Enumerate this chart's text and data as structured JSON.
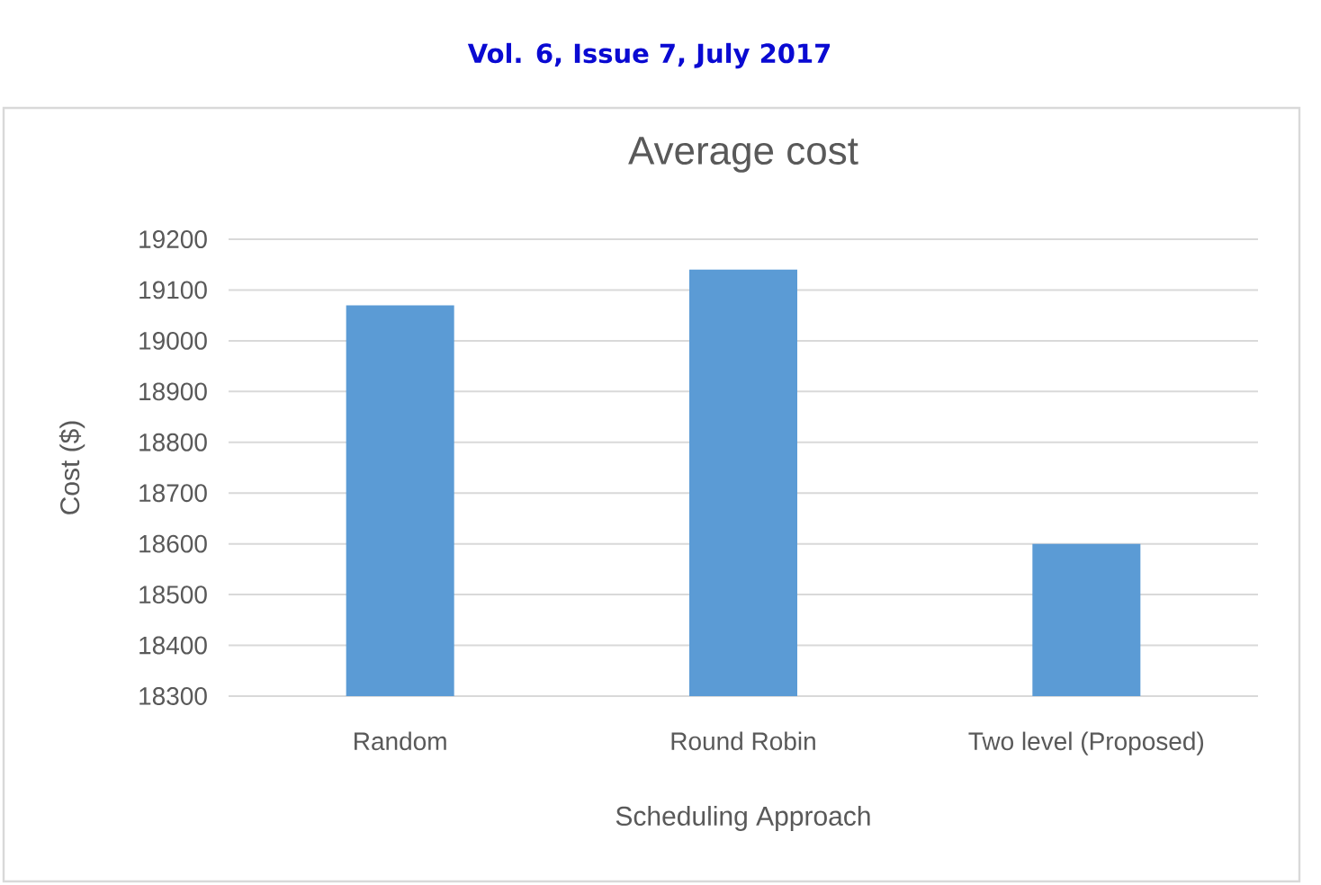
{
  "chart_data": {
    "type": "bar",
    "title": "Average cost",
    "xlabel": "Scheduling Approach",
    "ylabel": "Cost ($)",
    "categories": [
      "Random",
      "Round Robin",
      "Two level (Proposed)"
    ],
    "values": [
      19070,
      19140,
      18600
    ],
    "color": "#5b9bd5",
    "ylim": [
      18300,
      19200
    ],
    "yticks": [
      18300,
      18400,
      18500,
      18600,
      18700,
      18800,
      18900,
      19000,
      19100,
      19200
    ],
    "grid": "y",
    "annotations": [
      "Vol. 6, Issue 7, July 2017"
    ]
  }
}
